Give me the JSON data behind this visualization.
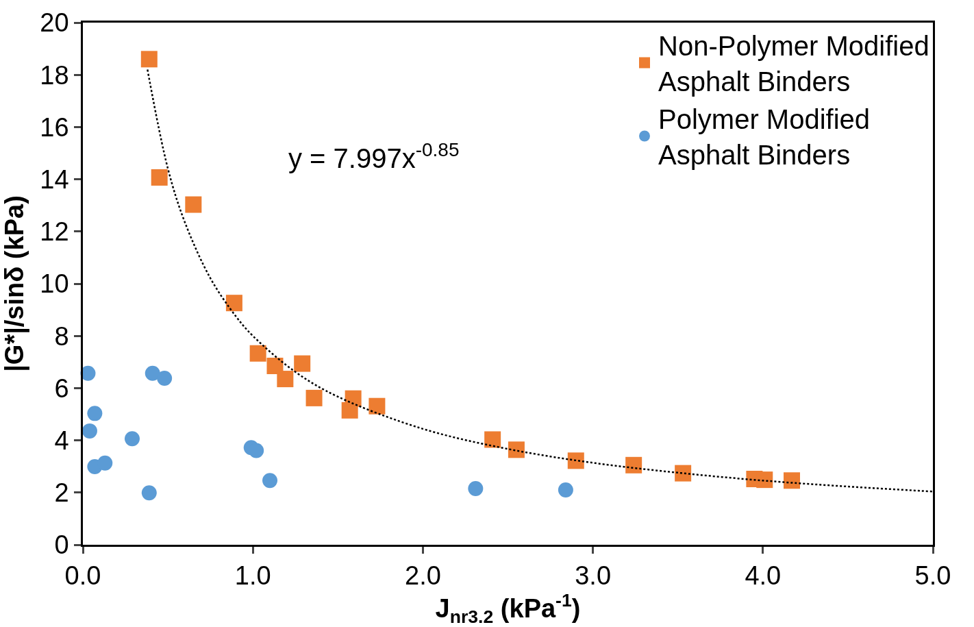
{
  "chart_data": {
    "type": "scatter",
    "xlabel": "J$_{nr3.2}$ (kPa$^{-1}$)",
    "ylabel": "|G*|/sinδ (kPa)",
    "xlim": [
      0,
      5
    ],
    "xticks": [
      {
        "value": 0,
        "label": "0.0"
      },
      {
        "value": 1,
        "label": "1.0"
      },
      {
        "value": 2,
        "label": "2.0"
      },
      {
        "value": 3,
        "label": "3.0"
      },
      {
        "value": 4,
        "label": "4.0"
      },
      {
        "value": 5,
        "label": "5.0"
      }
    ],
    "ylim": [
      0,
      20
    ],
    "yticks": [
      0,
      2,
      4,
      6,
      8,
      10,
      12,
      14,
      16,
      18,
      20
    ],
    "legend": "top right",
    "annotations": [
      "y = 7.997x$^{-0.85}$"
    ],
    "series": [
      {
        "name": "Non-Polymer Modified Asphalt Binders",
        "color": "#ed7d31",
        "marker": "square",
        "x": [
          0.39,
          0.45,
          0.65,
          0.89,
          1.03,
          1.13,
          1.19,
          1.29,
          1.36,
          1.59,
          1.57,
          1.73,
          2.41,
          2.55,
          2.9,
          3.24,
          3.53,
          3.95,
          4.01,
          4.17
        ],
        "values": [
          18.6,
          14.07,
          13.03,
          9.26,
          7.33,
          6.85,
          6.35,
          6.94,
          5.62,
          5.6,
          5.15,
          5.31,
          4.03,
          3.64,
          3.22,
          3.05,
          2.74,
          2.52,
          2.49,
          2.46
        ]
      },
      {
        "name": "Polymer Modified Asphalt Binders",
        "color": "#5b9bd5",
        "marker": "circle",
        "x": [
          0.03,
          0.41,
          0.48,
          0.07,
          0.04,
          0.29,
          0.07,
          0.13,
          0.39,
          0.99,
          1.02,
          1.1,
          2.31,
          2.84
        ],
        "values": [
          6.57,
          6.57,
          6.38,
          5.03,
          4.36,
          4.06,
          2.99,
          3.13,
          1.99,
          3.72,
          3.61,
          2.46,
          2.15,
          2.1
        ]
      },
      {
        "type": "line",
        "color": "#000000",
        "line_style": "dotted",
        "marker": "none",
        "x": [
          0.38,
          0.5,
          0.6,
          0.75,
          0.9,
          1.0,
          1.25,
          1.5,
          2.0,
          2.5,
          3.0,
          3.5,
          4.0,
          4.5,
          5.0
        ],
        "values": [
          18.2,
          14.41,
          12.35,
          10.21,
          8.75,
          8.0,
          6.62,
          5.67,
          4.44,
          3.67,
          3.14,
          2.76,
          2.46,
          2.23,
          2.04
        ]
      }
    ]
  }
}
